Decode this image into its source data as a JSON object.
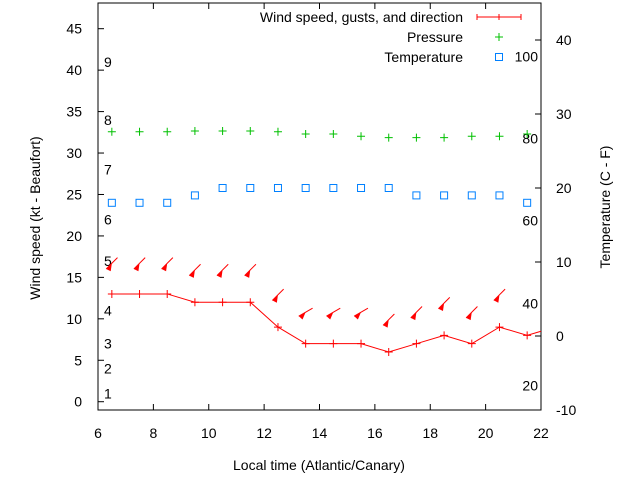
{
  "chart_data": {
    "type": "line",
    "xlabel": "Local time (Atlantic/Canary)",
    "ylabel": "Wind speed (kt - Beaufort)",
    "y2label": "Temperature (C - F)",
    "xlim": [
      6,
      22
    ],
    "ylim": [
      -1,
      48.1
    ],
    "y2lim": [
      -10,
      45
    ],
    "xticks": [
      6,
      8,
      10,
      12,
      14,
      16,
      18,
      20,
      22
    ],
    "yticks": [
      0,
      5,
      10,
      15,
      20,
      25,
      30,
      35,
      40,
      45
    ],
    "y2ticks": [
      -10,
      0,
      10,
      20,
      30,
      40
    ],
    "beaufort_labels": [
      {
        "label": "1",
        "kt": 1
      },
      {
        "label": "2",
        "kt": 4
      },
      {
        "label": "3",
        "kt": 7
      },
      {
        "label": "4",
        "kt": 11
      },
      {
        "label": "5",
        "kt": 17
      },
      {
        "label": "6",
        "kt": 22
      },
      {
        "label": "7",
        "kt": 28
      },
      {
        "label": "8",
        "kt": 34
      },
      {
        "label": "9",
        "kt": 41
      }
    ],
    "fahrenheit_labels": [
      {
        "label": "20",
        "c": -6.7
      },
      {
        "label": "40",
        "c": 4.4
      },
      {
        "label": "60",
        "c": 15.6
      },
      {
        "label": "80",
        "c": 26.7
      },
      {
        "label": "100",
        "c": 37.8
      }
    ],
    "x": [
      6.5,
      7.5,
      8.5,
      9.5,
      10.5,
      11.5,
      12.5,
      13.5,
      14.5,
      15.5,
      16.5,
      17.5,
      18.5,
      19.5,
      20.5,
      21.5
    ],
    "series": [
      {
        "name": "Wind speed, gusts, and direction",
        "axis": "y",
        "color": "#ff0000",
        "values": [
          13,
          13,
          13,
          12,
          12,
          12,
          9,
          7,
          7,
          7,
          6,
          7,
          8,
          7,
          9,
          8
        ],
        "end_value": 8.5,
        "gusts": [
          16.7,
          16.7,
          16.7,
          15.9,
          15.9,
          15.9,
          12.9,
          10.8,
          10.8,
          10.8,
          9.9,
          10.8,
          11.9,
          10.8,
          12.9
        ],
        "direction_deg": [
          45,
          45,
          45,
          45,
          45,
          45,
          45,
          60,
          60,
          60,
          45,
          45,
          45,
          45,
          45
        ]
      },
      {
        "name": "Pressure",
        "axis": "y2",
        "color": "#00c000",
        "values": [
          27.6,
          27.6,
          27.6,
          27.7,
          27.7,
          27.7,
          27.6,
          27.3,
          27.3,
          27.0,
          26.8,
          26.8,
          26.8,
          27.0,
          27.0,
          27.3
        ]
      },
      {
        "name": "Temperature",
        "axis": "y2",
        "color": "#0080ff",
        "values": [
          18,
          18,
          18,
          19,
          20,
          20,
          20,
          20,
          20,
          20,
          20,
          19,
          19,
          19,
          19,
          18
        ]
      }
    ],
    "legend_position": "top-right"
  }
}
